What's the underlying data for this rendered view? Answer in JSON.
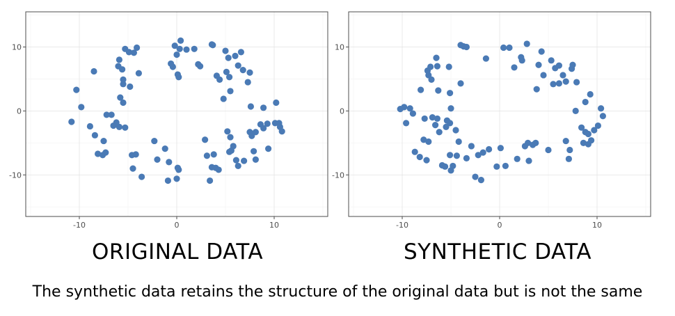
{
  "chart_data": [
    {
      "type": "scatter",
      "title": "ORIGINAL DATA",
      "xlim": [
        -15.5,
        15.5
      ],
      "ylim": [
        -16.5,
        15.5
      ],
      "xticks": [
        -10,
        0,
        10
      ],
      "yticks": [
        -10,
        0,
        10
      ],
      "grid": true,
      "point_color": "#4a7ab5",
      "points": [
        [
          -10.8,
          -1.7
        ],
        [
          -10.3,
          3.3
        ],
        [
          -9.8,
          0.6
        ],
        [
          -8.9,
          -2.4
        ],
        [
          -8.4,
          -3.8
        ],
        [
          -8.5,
          6.2
        ],
        [
          -8.1,
          -6.7
        ],
        [
          -7.6,
          -6.9
        ],
        [
          -7.5,
          -4.7
        ],
        [
          -7.3,
          -6.5
        ],
        [
          -7.2,
          -0.6
        ],
        [
          -6.7,
          -0.6
        ],
        [
          -6.5,
          -2.3
        ],
        [
          -6.2,
          -1.8
        ],
        [
          -5.9,
          -2.5
        ],
        [
          -5.8,
          2.1
        ],
        [
          -5.5,
          1.3
        ],
        [
          -5.3,
          -2.6
        ],
        [
          -5.9,
          8.0
        ],
        [
          -6.0,
          7.0
        ],
        [
          -5.6,
          6.5
        ],
        [
          -5.5,
          4.9
        ],
        [
          -5.5,
          4.2
        ],
        [
          -5.3,
          9.7
        ],
        [
          -4.9,
          9.2
        ],
        [
          -4.8,
          3.8
        ],
        [
          -4.4,
          9.1
        ],
        [
          -4.1,
          9.9
        ],
        [
          -3.9,
          5.9
        ],
        [
          -4.6,
          -6.9
        ],
        [
          -4.2,
          -6.8
        ],
        [
          -4.5,
          -9.0
        ],
        [
          -3.6,
          -10.3
        ],
        [
          -2.3,
          -4.7
        ],
        [
          -2.0,
          -7.6
        ],
        [
          -1.2,
          -5.9
        ],
        [
          -0.8,
          -8.0
        ],
        [
          -0.9,
          -10.9
        ],
        [
          -0.6,
          7.4
        ],
        [
          -0.4,
          6.9
        ],
        [
          -0.2,
          10.2
        ],
        [
          0.3,
          9.7
        ],
        [
          0.1,
          5.7
        ],
        [
          0.2,
          5.3
        ],
        [
          0.0,
          8.8
        ],
        [
          0.1,
          -8.9
        ],
        [
          0.2,
          -9.2
        ],
        [
          0.0,
          -10.6
        ],
        [
          0.4,
          11.0
        ],
        [
          1.0,
          9.6
        ],
        [
          1.8,
          9.7
        ],
        [
          2.2,
          7.3
        ],
        [
          2.4,
          7.0
        ],
        [
          2.9,
          -4.5
        ],
        [
          3.1,
          -7.0
        ],
        [
          3.4,
          -10.9
        ],
        [
          3.6,
          10.4
        ],
        [
          3.7,
          10.3
        ],
        [
          3.8,
          -6.8
        ],
        [
          3.6,
          -8.8
        ],
        [
          4.0,
          -8.9
        ],
        [
          4.3,
          -9.2
        ],
        [
          4.1,
          5.5
        ],
        [
          4.4,
          4.9
        ],
        [
          4.8,
          1.9
        ],
        [
          5.0,
          9.4
        ],
        [
          5.1,
          6.1
        ],
        [
          5.3,
          8.3
        ],
        [
          5.4,
          5.3
        ],
        [
          5.5,
          3.1
        ],
        [
          5.2,
          -3.2
        ],
        [
          5.4,
          -6.4
        ],
        [
          5.6,
          -6.2
        ],
        [
          5.5,
          -4.1
        ],
        [
          5.8,
          -5.5
        ],
        [
          6.1,
          -7.7
        ],
        [
          6.3,
          -8.6
        ],
        [
          6.0,
          8.6
        ],
        [
          6.3,
          7.1
        ],
        [
          6.6,
          9.2
        ],
        [
          6.8,
          6.4
        ],
        [
          6.9,
          -7.8
        ],
        [
          7.5,
          -3.3
        ],
        [
          7.7,
          -3.9
        ],
        [
          7.3,
          4.5
        ],
        [
          7.5,
          6.0
        ],
        [
          7.6,
          0.7
        ],
        [
          7.9,
          -6.3
        ],
        [
          8.1,
          -7.6
        ],
        [
          8.1,
          -3.3
        ],
        [
          8.6,
          -2.1
        ],
        [
          8.9,
          -2.7
        ],
        [
          8.9,
          0.5
        ],
        [
          9.3,
          -2.0
        ],
        [
          9.4,
          -5.9
        ],
        [
          10.2,
          1.3
        ],
        [
          10.1,
          -1.9
        ],
        [
          10.6,
          -2.5
        ],
        [
          10.5,
          -1.9
        ],
        [
          10.8,
          -3.2
        ]
      ]
    },
    {
      "type": "scatter",
      "title": "SYNTHETIC DATA",
      "xlim": [
        -15.5,
        15.5
      ],
      "ylim": [
        -16.5,
        15.5
      ],
      "xticks": [
        -10,
        0,
        10
      ],
      "yticks": [
        -10,
        0,
        10
      ],
      "grid": true,
      "point_color": "#4a7ab5",
      "points": [
        [
          -10.2,
          0.3
        ],
        [
          -9.8,
          0.6
        ],
        [
          -9.6,
          -1.9
        ],
        [
          -9.2,
          0.4
        ],
        [
          -8.9,
          -0.4
        ],
        [
          -8.7,
          -6.4
        ],
        [
          -8.2,
          -7.2
        ],
        [
          -8.1,
          3.3
        ],
        [
          -7.8,
          -4.5
        ],
        [
          -7.7,
          -1.2
        ],
        [
          -7.5,
          -7.7
        ],
        [
          -7.3,
          -4.8
        ],
        [
          -7.3,
          5.6
        ],
        [
          -7.0,
          4.9
        ],
        [
          -7.4,
          6.3
        ],
        [
          -7.1,
          6.9
        ],
        [
          -6.9,
          -1.0
        ],
        [
          -6.6,
          -2.2
        ],
        [
          -6.4,
          -1.2
        ],
        [
          -6.5,
          8.3
        ],
        [
          -6.4,
          7.0
        ],
        [
          -6.3,
          3.2
        ],
        [
          -6.2,
          -3.3
        ],
        [
          -5.9,
          -8.5
        ],
        [
          -5.6,
          -8.7
        ],
        [
          -5.5,
          -2.5
        ],
        [
          -5.4,
          -1.5
        ],
        [
          -5.1,
          2.8
        ],
        [
          -5.2,
          6.9
        ],
        [
          -5.0,
          0.4
        ],
        [
          -5.1,
          -1.9
        ],
        [
          -5.1,
          -6.9
        ],
        [
          -5.0,
          -9.3
        ],
        [
          -4.8,
          -8.6
        ],
        [
          -4.5,
          -3.0
        ],
        [
          -4.4,
          -7.0
        ],
        [
          -4.2,
          -4.8
        ],
        [
          -4.0,
          4.3
        ],
        [
          -4.0,
          10.3
        ],
        [
          -3.7,
          10.1
        ],
        [
          -3.4,
          10.0
        ],
        [
          -3.4,
          -7.4
        ],
        [
          -2.9,
          -5.5
        ],
        [
          -2.5,
          -10.3
        ],
        [
          -2.2,
          -6.9
        ],
        [
          -1.9,
          -10.8
        ],
        [
          -1.7,
          -6.5
        ],
        [
          -1.1,
          -6.0
        ],
        [
          -1.4,
          8.2
        ],
        [
          -0.3,
          -8.7
        ],
        [
          0.1,
          -5.8
        ],
        [
          0.4,
          9.9
        ],
        [
          0.6,
          -8.6
        ],
        [
          1.0,
          9.9
        ],
        [
          1.5,
          6.8
        ],
        [
          1.8,
          -7.5
        ],
        [
          2.2,
          8.4
        ],
        [
          2.3,
          7.9
        ],
        [
          2.6,
          -5.5
        ],
        [
          2.8,
          10.5
        ],
        [
          2.9,
          -5.0
        ],
        [
          3.0,
          -7.8
        ],
        [
          3.4,
          -5.3
        ],
        [
          3.7,
          -5.0
        ],
        [
          3.8,
          3.4
        ],
        [
          4.3,
          9.3
        ],
        [
          4.0,
          7.2
        ],
        [
          4.5,
          5.6
        ],
        [
          5.0,
          -6.1
        ],
        [
          5.3,
          7.9
        ],
        [
          5.5,
          4.2
        ],
        [
          5.7,
          6.7
        ],
        [
          6.1,
          4.3
        ],
        [
          6.1,
          7.1
        ],
        [
          6.5,
          5.6
        ],
        [
          6.8,
          4.6
        ],
        [
          6.8,
          -4.7
        ],
        [
          7.1,
          -7.5
        ],
        [
          7.2,
          -6.1
        ],
        [
          7.4,
          6.6
        ],
        [
          7.5,
          7.2
        ],
        [
          7.8,
          0.0
        ],
        [
          7.9,
          4.5
        ],
        [
          8.4,
          -2.6
        ],
        [
          8.6,
          -5.0
        ],
        [
          8.8,
          -3.3
        ],
        [
          8.8,
          1.4
        ],
        [
          9.1,
          -5.2
        ],
        [
          9.1,
          -3.6
        ],
        [
          9.3,
          2.6
        ],
        [
          9.4,
          -4.6
        ],
        [
          9.7,
          -3.0
        ],
        [
          10.1,
          -2.3
        ],
        [
          10.4,
          0.4
        ],
        [
          10.6,
          -0.8
        ]
      ]
    }
  ],
  "caption": "The synthetic data retains the structure of the original data but is not the same"
}
